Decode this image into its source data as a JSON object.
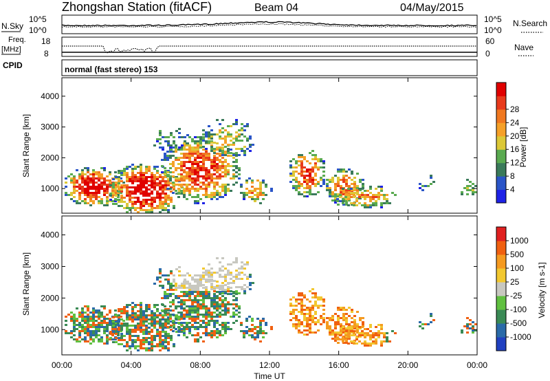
{
  "header": {
    "station_title": "Zhongshan Station (fitACF)",
    "beam_label": "Beam 04",
    "date_label": "04/May/2015"
  },
  "top_panels": {
    "nsky_label": "N.Sky",
    "nsky_tick_top": "10^5",
    "nsky_tick_bottom": "10^0",
    "nsearch_tick_top": "10^5",
    "nsearch_tick_bottom": "10^0",
    "nsearch_label": "N.Search",
    "freq_label": "Freq.",
    "freq_unit": "[MHz]",
    "freq_tick_top": "18",
    "freq_tick_bottom": "8",
    "nave_tick_top": "60",
    "nave_tick_bottom": "0",
    "nave_label": "Nave",
    "cpid_label": "CPID",
    "cpid_value": "normal (fast stereo) 153"
  },
  "chart_data": [
    {
      "type": "heatmap",
      "name": "power",
      "ylabel": "Slant Range [km]",
      "ylim": [
        200,
        4600
      ],
      "y_ticks": [
        "1000",
        "2000",
        "3000",
        "4000"
      ],
      "colorbar_label": "Power [dB]",
      "colorbar_ticks": [
        "4",
        "8",
        "12",
        "16",
        "20",
        "24",
        "28"
      ],
      "colorbar_colors": [
        "#1e22e6",
        "#2a55c8",
        "#3a7a5a",
        "#5aaa50",
        "#dcc837",
        "#f5a028",
        "#f07820",
        "#e83a1c",
        "#e00000"
      ]
    },
    {
      "type": "heatmap",
      "name": "velocity",
      "ylabel": "Slant Range [km]",
      "ylim": [
        200,
        4600
      ],
      "y_ticks": [
        "1000",
        "2000",
        "3000",
        "4000"
      ],
      "colorbar_label": "Velocity [m s-1]",
      "colorbar_ticks": [
        "1000",
        "500",
        "100",
        "25",
        "-25",
        "-100",
        "-500",
        "-1000"
      ],
      "colorbar_colors": [
        "#2040c0",
        "#2a6aa8",
        "#3a8a55",
        "#60c040",
        "#c8c8c0",
        "#f2c830",
        "#f59a20",
        "#f06010",
        "#e02020"
      ]
    }
  ],
  "time_axis": {
    "ticks": [
      "00:00",
      "04:00",
      "08:00",
      "12:00",
      "16:00",
      "20:00",
      "00:00"
    ],
    "label": "Time UT"
  }
}
